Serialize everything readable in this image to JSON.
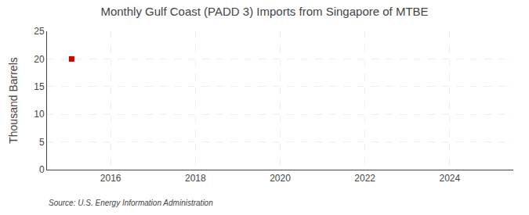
{
  "chart_data": {
    "type": "scatter",
    "title": "Monthly Gulf Coast (PADD 3) Imports from Singapore of MTBE",
    "ylabel": "Thousand Barrels",
    "annotations": [
      "Source: U.S. Energy Information Administration"
    ],
    "x": [
      2015.08
    ],
    "values": [
      20
    ],
    "color": "#cc0000",
    "marker": "square",
    "xlim": [
      2014.5,
      2025.5
    ],
    "xticks": [
      2016,
      2018,
      2020,
      2022,
      2024
    ],
    "ylim": [
      0,
      25
    ],
    "yticks": [
      0,
      5,
      10,
      15,
      20,
      25
    ],
    "grid": true
  }
}
